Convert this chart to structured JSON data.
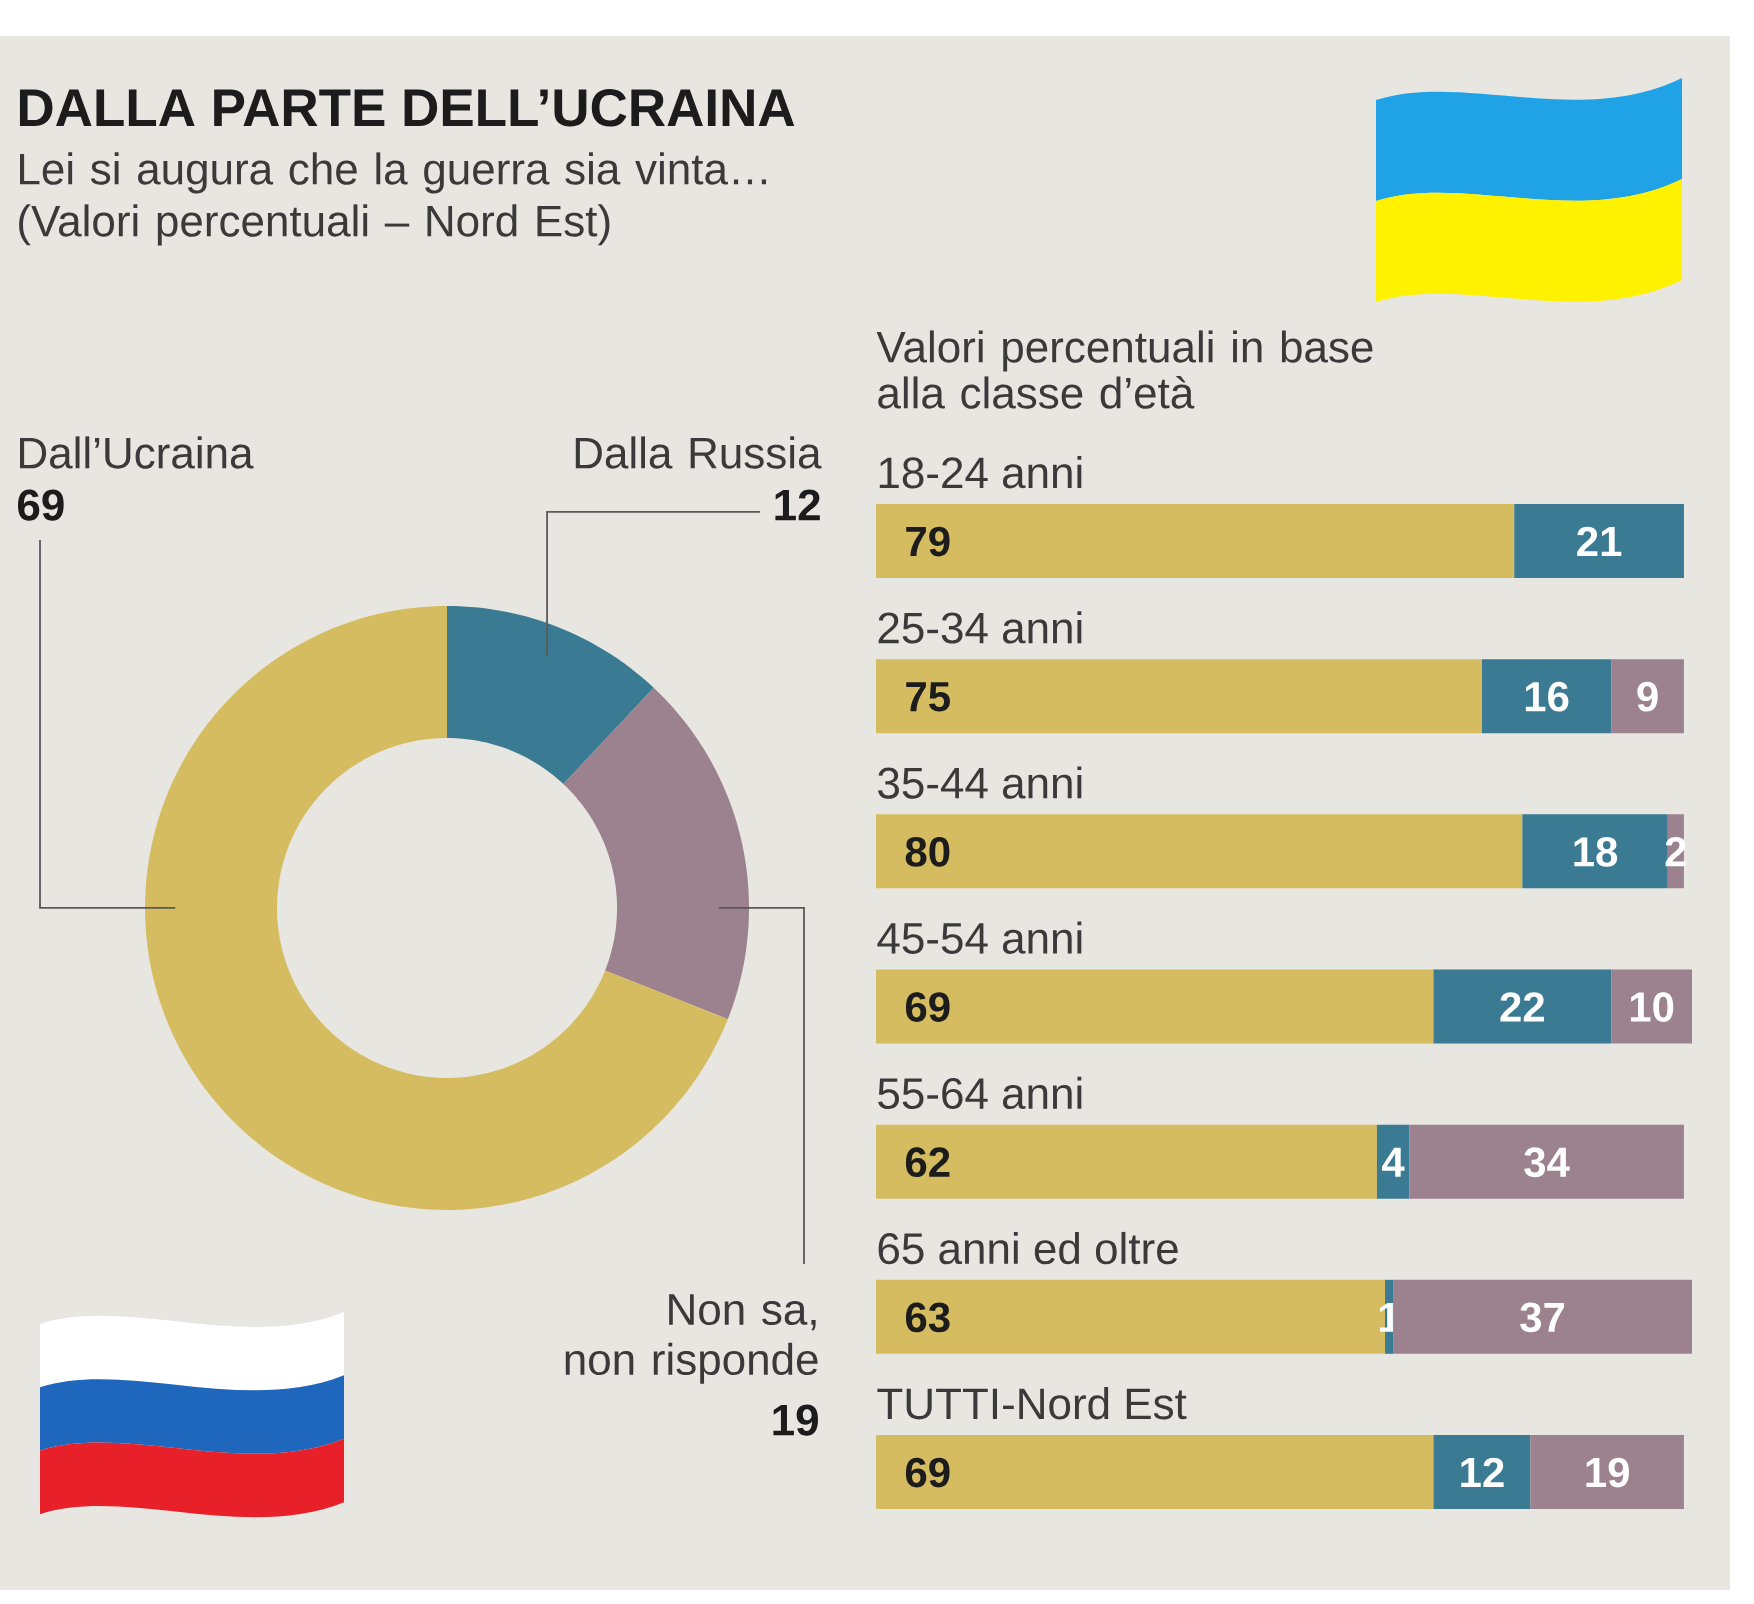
{
  "chart_data": [
    {
      "type": "donut",
      "title": "DALLA PARTE DELL’UCRAINA",
      "subtitle": "Lei si augura che la guerra sia vinta… (Valori percentuali – Nord Est)",
      "categories": [
        "Dalla Russia",
        "Non sa, non risponde",
        "Dall’Ucraina"
      ],
      "values": [
        12,
        19,
        69
      ],
      "colors": [
        "#3a7a92",
        "#9b828e",
        "#d6bc60"
      ],
      "data_labels": true
    },
    {
      "type": "bar",
      "orientation": "horizontal",
      "stacked": true,
      "title": "Valori percentuali in base alla classe d’età",
      "categories": [
        "18-24 anni",
        "25-34 anni",
        "35-44 anni",
        "45-54 anni",
        "55-64 anni",
        "65 anni ed oltre",
        "TUTTI-Nord Est"
      ],
      "series": [
        {
          "color": "#d6bc60",
          "values": [
            79,
            75,
            80,
            69,
            62,
            63,
            69
          ]
        },
        {
          "color": "#3a7a92",
          "values": [
            21,
            16,
            18,
            22,
            4,
            1,
            12
          ]
        },
        {
          "color": "#9b828e",
          "values": [
            null,
            9,
            2,
            10,
            34,
            37,
            19
          ]
        }
      ],
      "xlim": [
        0,
        101
      ],
      "tick_labels": "y",
      "data_labels": true
    }
  ]
}
